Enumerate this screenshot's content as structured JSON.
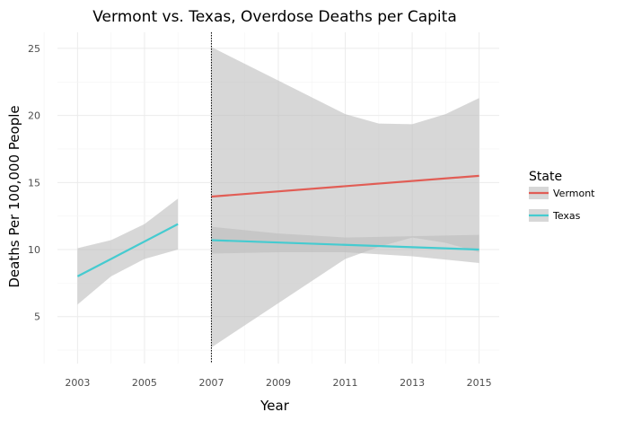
{
  "chart_data": {
    "type": "line",
    "title": "Vermont vs. Texas, Overdose Deaths per Capita",
    "xlabel": "Year",
    "ylabel": "Deaths Per 100,000 People",
    "xlim": [
      2002.4,
      2015.6
    ],
    "ylim": [
      1.5,
      26.2
    ],
    "xticks": [
      2003,
      2005,
      2007,
      2009,
      2011,
      2013,
      2015
    ],
    "yticks": [
      5,
      10,
      15,
      20,
      25
    ],
    "grid": true,
    "legend": {
      "title": "State",
      "position": "right",
      "entries": [
        {
          "label": "Vermont",
          "color": "#e15d55"
        },
        {
          "label": "Texas",
          "color": "#45cbd0"
        }
      ]
    },
    "vline": {
      "x": 2007,
      "style": "dotted",
      "color": "#000000"
    },
    "band_color": "#bdbdbd",
    "series": [
      {
        "name": "Texas",
        "color": "#45cbd0",
        "segment": "pre",
        "x": [
          2003,
          2006
        ],
        "y": [
          8.0,
          11.9
        ],
        "ci_x": [
          2003,
          2004,
          2005,
          2006
        ],
        "ci_upper": [
          10.1,
          10.7,
          11.9,
          13.8
        ],
        "ci_lower": [
          5.9,
          8.0,
          9.3,
          10.0
        ]
      },
      {
        "name": "Vermont",
        "color": "#e15d55",
        "segment": "post",
        "x": [
          2007,
          2015
        ],
        "y": [
          13.95,
          15.5
        ],
        "ci_x": [
          2007,
          2009,
          2011,
          2012,
          2013,
          2014,
          2015
        ],
        "ci_upper": [
          25.1,
          22.6,
          20.1,
          19.4,
          19.35,
          20.1,
          21.3
        ],
        "ci_lower": [
          2.7,
          6.0,
          9.3,
          10.2,
          10.9,
          10.5,
          9.8
        ]
      },
      {
        "name": "Texas",
        "color": "#45cbd0",
        "segment": "post",
        "x": [
          2007,
          2015
        ],
        "y": [
          10.7,
          10.0
        ],
        "ci_x": [
          2007,
          2009,
          2011,
          2013,
          2015
        ],
        "ci_upper": [
          11.7,
          11.2,
          10.9,
          11.0,
          11.1
        ],
        "ci_lower": [
          9.7,
          9.8,
          9.8,
          9.5,
          9.0
        ]
      }
    ]
  }
}
